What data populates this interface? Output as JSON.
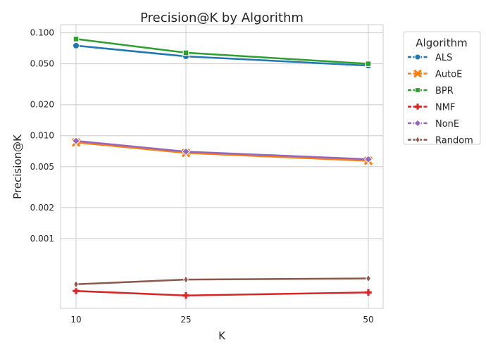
{
  "chart_data": {
    "type": "line",
    "title": "Precision@K by Algorithm",
    "xlabel": "K",
    "ylabel": "Precision@K",
    "x": [
      10,
      25,
      50
    ],
    "x_ticks": [
      "10",
      "25",
      "50"
    ],
    "y_scale": "log",
    "ylim": [
      0.00021,
      0.12
    ],
    "y_ticks": [
      0.001,
      0.002,
      0.005,
      0.01,
      0.02,
      0.05,
      0.1
    ],
    "y_tick_labels": [
      "0.001",
      "0.002",
      "0.005",
      "0.010",
      "0.020",
      "0.050",
      "0.100"
    ],
    "grid": true,
    "legend": {
      "title": "Algorithm",
      "placement": "outside-right"
    },
    "series": [
      {
        "name": "ALS",
        "values": [
          0.075,
          0.059,
          0.048
        ],
        "color": "#1f77b4",
        "marker": "circle"
      },
      {
        "name": "AutoE",
        "values": [
          0.0086,
          0.0068,
          0.0057
        ],
        "color": "#ff7f0e",
        "marker": "x"
      },
      {
        "name": "BPR",
        "values": [
          0.087,
          0.064,
          0.05
        ],
        "color": "#2ca02c",
        "marker": "square"
      },
      {
        "name": "NMF",
        "values": [
          0.00031,
          0.00028,
          0.0003
        ],
        "color": "#d62728",
        "marker": "plus"
      },
      {
        "name": "NonE",
        "values": [
          0.0089,
          0.007,
          0.0059
        ],
        "color": "#9467bd",
        "marker": "diamond"
      },
      {
        "name": "Random",
        "values": [
          0.00036,
          0.0004,
          0.00041
        ],
        "color": "#8c564b",
        "marker": "thin-diamond"
      }
    ]
  }
}
